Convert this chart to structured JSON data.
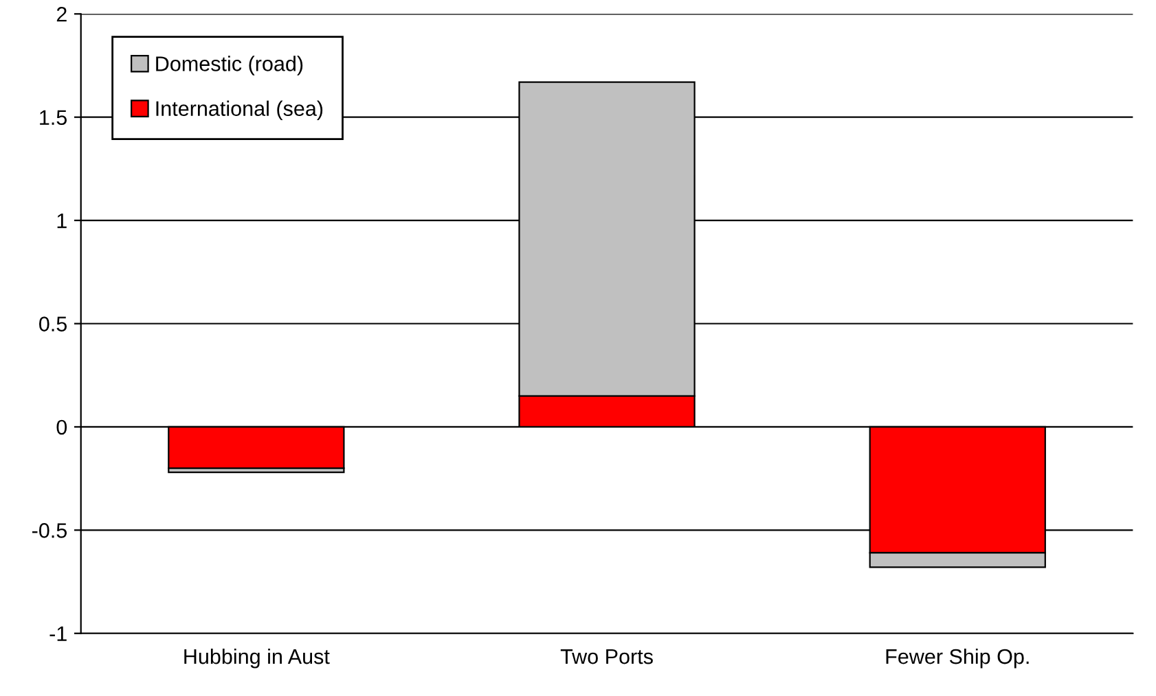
{
  "chart_data": {
    "type": "bar",
    "stacked": true,
    "categories": [
      "Hubbing in Aust",
      "Two Ports",
      "Fewer Ship Op."
    ],
    "series": [
      {
        "name": "International (sea)",
        "color": "#ff0000",
        "values": [
          -0.2,
          0.15,
          -0.61
        ]
      },
      {
        "name": "Domestic (road)",
        "color": "#c0c0c0",
        "values": [
          -0.02,
          1.52,
          -0.07
        ]
      }
    ],
    "ylim": [
      -1,
      2
    ],
    "yticks": [
      -1,
      -0.5,
      0,
      0.5,
      1,
      1.5,
      2
    ],
    "grid": "y",
    "legend": "top left"
  }
}
